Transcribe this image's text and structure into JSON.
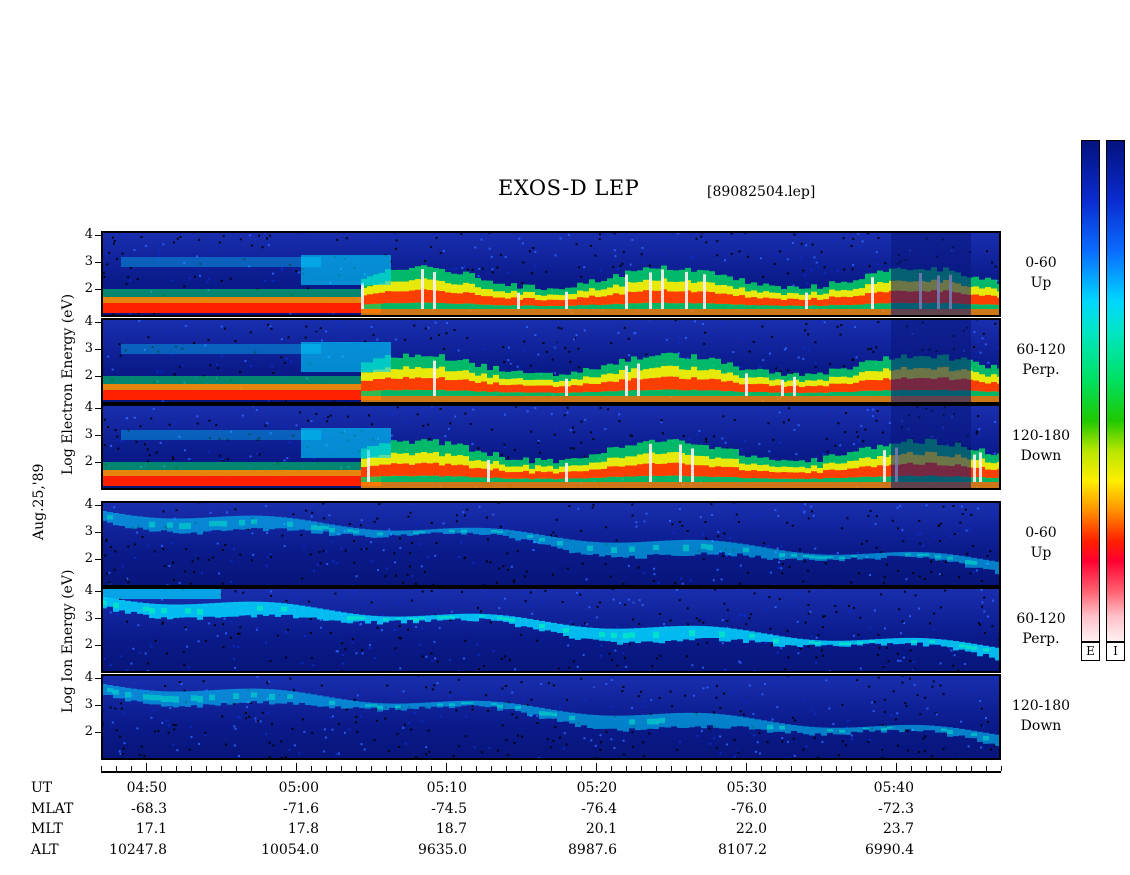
{
  "title": "EXOS-D LEP",
  "filename": "[89082504.lep]",
  "date_label": "Aug.25,'89",
  "electron_ylabel": "Log  Electron  Energy (eV)",
  "ion_ylabel": "Log  Ion  Energy (eV)",
  "y_ticks": [
    "4",
    "3",
    "2"
  ],
  "panels": [
    {
      "id": "e-up",
      "species": "Electron",
      "pitch": "0-60",
      "dir": "Up"
    },
    {
      "id": "e-perp",
      "species": "Electron",
      "pitch": "60-120",
      "dir": "Perp."
    },
    {
      "id": "e-down",
      "species": "Electron",
      "pitch": "120-180",
      "dir": "Down"
    },
    {
      "id": "i-up",
      "species": "Ion",
      "pitch": "0-60",
      "dir": "Up"
    },
    {
      "id": "i-perp",
      "species": "Ion",
      "pitch": "60-120",
      "dir": "Perp."
    },
    {
      "id": "i-down",
      "species": "Ion",
      "pitch": "120-180",
      "dir": "Down"
    }
  ],
  "colorbars": [
    {
      "label": "E",
      "colors": [
        "#04127e",
        "#00d6ff",
        "#00e060",
        "#ffee00",
        "#ff2000",
        "#fff0f2"
      ]
    },
    {
      "label": "I",
      "colors": [
        "#04127e",
        "#00d6ff",
        "#00e060",
        "#ffee00",
        "#ff2000",
        "#fff0f2"
      ]
    }
  ],
  "info_rows": {
    "labels": [
      "UT",
      "MLAT",
      "MLT",
      "ALT"
    ],
    "ut": [
      "04:50",
      "05:00",
      "05:10",
      "05:20",
      "05:30",
      "05:40"
    ],
    "mlat": [
      "-68.3",
      "-71.6",
      "-74.5",
      "-76.4",
      "-76.0",
      "-72.3"
    ],
    "mlt": [
      "17.1",
      "17.8",
      "18.7",
      "20.1",
      "22.0",
      "23.7"
    ],
    "alt": [
      "10247.8",
      "10054.0",
      "9635.0",
      "8987.6",
      "8107.2",
      "6990.4"
    ]
  },
  "chart_data": {
    "type": "heatmap",
    "title": "EXOS-D LEP",
    "xlabel": "UT",
    "ylabel": "Log Energy (eV)",
    "x_ticks": [
      "04:50",
      "05:00",
      "05:10",
      "05:20",
      "05:30",
      "05:40"
    ],
    "ylim": [
      1,
      4
    ],
    "series": [
      {
        "name": "Electron 0-60 Up"
      },
      {
        "name": "Electron 60-120 Perp."
      },
      {
        "name": "Electron 120-180 Down"
      },
      {
        "name": "Ion 0-60 Up"
      },
      {
        "name": "Ion 60-120 Perp."
      },
      {
        "name": "Ion 120-180 Down"
      }
    ]
  }
}
